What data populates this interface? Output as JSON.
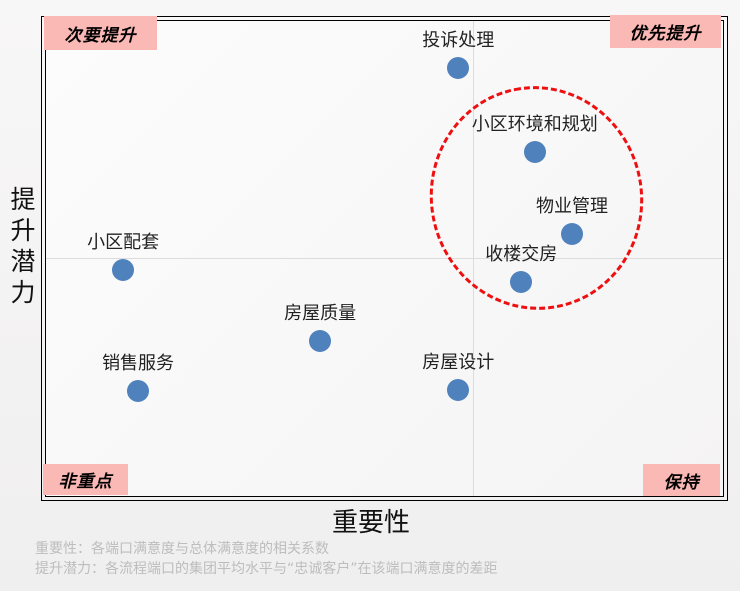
{
  "chart_data": {
    "type": "scatter",
    "title": "",
    "xlabel": "重要性",
    "ylabel": "提升潜力",
    "xlim": [
      0,
      1
    ],
    "ylim": [
      0,
      1
    ],
    "grid": "quadrant dividers only",
    "legend": "none",
    "quadrants": {
      "x_divider": 0.631,
      "y_divider": 0.501,
      "top_left": "次要提升",
      "top_right": "优先提升",
      "bottom_left": "非重点",
      "bottom_right": "保持"
    },
    "points": [
      {
        "label": "投诉处理",
        "x": 0.609,
        "y": 0.901
      },
      {
        "label": "小区环境和规划",
        "x": 0.722,
        "y": 0.724
      },
      {
        "label": "物业管理",
        "x": 0.777,
        "y": 0.552
      },
      {
        "label": "收楼交房",
        "x": 0.702,
        "y": 0.451
      },
      {
        "label": "小区配套",
        "x": 0.114,
        "y": 0.476
      },
      {
        "label": "房屋质量",
        "x": 0.405,
        "y": 0.326
      },
      {
        "label": "销售服务",
        "x": 0.136,
        "y": 0.221
      },
      {
        "label": "房屋设计",
        "x": 0.609,
        "y": 0.223
      }
    ],
    "highlight_ellipse": {
      "style": "dashed",
      "color": "#ee1010",
      "cx": 0.724,
      "cy": 0.627,
      "rx": 0.157,
      "ry": 0.236,
      "rotation_deg": -11,
      "encircles": [
        "小区环境和规划",
        "物业管理",
        "收楼交房"
      ]
    }
  },
  "footnotes": [
    "重要性：各端口满意度与总体满意度的相关系数",
    "提升潜力：各流程端口的集团平均水平与“忠诚客户”在该端口满意度的差距"
  ],
  "colors": {
    "point_blue": "#4f81bd",
    "ellipse_red": "#ee1010",
    "label_pink": "#fab9b4",
    "gridline_gray": "#dcdcdc",
    "footnote_gray": "#bdbdbd",
    "frame_black": "#000000"
  }
}
